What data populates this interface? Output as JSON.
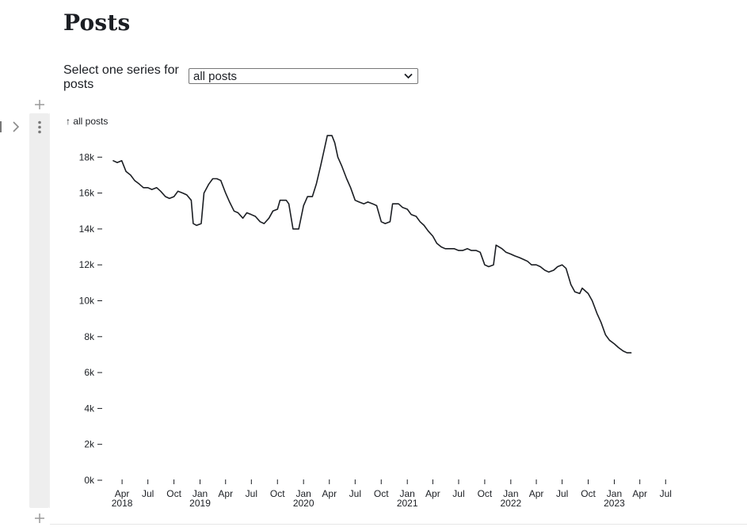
{
  "page": {
    "title": "Posts"
  },
  "selector": {
    "label": "Select one series for posts",
    "value": "all posts"
  },
  "chart_data": {
    "type": "line",
    "title": "",
    "ylabel": "↑ all posts",
    "xlabel": "",
    "ylim": [
      0,
      20000
    ],
    "xlim": [
      "2018-02-15",
      "2023-07-31"
    ],
    "y_ticks": [
      {
        "value": 0,
        "label": "0k"
      },
      {
        "value": 2000,
        "label": "2k"
      },
      {
        "value": 4000,
        "label": "4k"
      },
      {
        "value": 6000,
        "label": "6k"
      },
      {
        "value": 8000,
        "label": "8k"
      },
      {
        "value": 10000,
        "label": "10k"
      },
      {
        "value": 12000,
        "label": "12k"
      },
      {
        "value": 14000,
        "label": "14k"
      },
      {
        "value": 16000,
        "label": "16k"
      },
      {
        "value": 18000,
        "label": "18k"
      }
    ],
    "x_ticks": [
      {
        "date": "2018-04-01",
        "label": "Apr",
        "year": "2018"
      },
      {
        "date": "2018-07-01",
        "label": "Jul",
        "year": ""
      },
      {
        "date": "2018-10-01",
        "label": "Oct",
        "year": ""
      },
      {
        "date": "2019-01-01",
        "label": "Jan",
        "year": "2019"
      },
      {
        "date": "2019-04-01",
        "label": "Apr",
        "year": ""
      },
      {
        "date": "2019-07-01",
        "label": "Jul",
        "year": ""
      },
      {
        "date": "2019-10-01",
        "label": "Oct",
        "year": ""
      },
      {
        "date": "2020-01-01",
        "label": "Jan",
        "year": "2020"
      },
      {
        "date": "2020-04-01",
        "label": "Apr",
        "year": ""
      },
      {
        "date": "2020-07-01",
        "label": "Jul",
        "year": ""
      },
      {
        "date": "2020-10-01",
        "label": "Oct",
        "year": ""
      },
      {
        "date": "2021-01-01",
        "label": "Jan",
        "year": "2021"
      },
      {
        "date": "2021-04-01",
        "label": "Apr",
        "year": ""
      },
      {
        "date": "2021-07-01",
        "label": "Jul",
        "year": ""
      },
      {
        "date": "2021-10-01",
        "label": "Oct",
        "year": ""
      },
      {
        "date": "2022-01-01",
        "label": "Jan",
        "year": "2022"
      },
      {
        "date": "2022-04-01",
        "label": "Apr",
        "year": ""
      },
      {
        "date": "2022-07-01",
        "label": "Jul",
        "year": ""
      },
      {
        "date": "2022-10-01",
        "label": "Oct",
        "year": ""
      },
      {
        "date": "2023-01-01",
        "label": "Jan",
        "year": "2023"
      },
      {
        "date": "2023-04-01",
        "label": "Apr",
        "year": ""
      },
      {
        "date": "2023-07-01",
        "label": "Jul",
        "year": ""
      }
    ],
    "series": [
      {
        "name": "all posts",
        "color": "#1b1e23",
        "points": [
          [
            "2018-03-01",
            17800
          ],
          [
            "2018-03-15",
            17700
          ],
          [
            "2018-03-31",
            17800
          ],
          [
            "2018-04-15",
            17200
          ],
          [
            "2018-05-01",
            17000
          ],
          [
            "2018-05-15",
            16700
          ],
          [
            "2018-06-01",
            16500
          ],
          [
            "2018-06-15",
            16300
          ],
          [
            "2018-07-01",
            16300
          ],
          [
            "2018-07-15",
            16200
          ],
          [
            "2018-08-01",
            16300
          ],
          [
            "2018-08-15",
            16100
          ],
          [
            "2018-09-01",
            15800
          ],
          [
            "2018-09-15",
            15700
          ],
          [
            "2018-10-01",
            15800
          ],
          [
            "2018-10-15",
            16100
          ],
          [
            "2018-11-01",
            16000
          ],
          [
            "2018-11-15",
            15900
          ],
          [
            "2018-12-01",
            15600
          ],
          [
            "2018-12-08",
            14300
          ],
          [
            "2018-12-20",
            14200
          ],
          [
            "2019-01-05",
            14300
          ],
          [
            "2019-01-15",
            16000
          ],
          [
            "2019-02-01",
            16500
          ],
          [
            "2019-02-15",
            16800
          ],
          [
            "2019-03-01",
            16800
          ],
          [
            "2019-03-15",
            16700
          ],
          [
            "2019-04-01",
            16000
          ],
          [
            "2019-04-15",
            15500
          ],
          [
            "2019-05-01",
            15000
          ],
          [
            "2019-05-15",
            14900
          ],
          [
            "2019-06-01",
            14600
          ],
          [
            "2019-06-15",
            14900
          ],
          [
            "2019-07-01",
            14800
          ],
          [
            "2019-07-15",
            14700
          ],
          [
            "2019-08-01",
            14400
          ],
          [
            "2019-08-15",
            14300
          ],
          [
            "2019-09-01",
            14600
          ],
          [
            "2019-09-15",
            15000
          ],
          [
            "2019-10-01",
            15100
          ],
          [
            "2019-10-10",
            15600
          ],
          [
            "2019-11-01",
            15600
          ],
          [
            "2019-11-10",
            15400
          ],
          [
            "2019-11-25",
            14000
          ],
          [
            "2019-12-15",
            14000
          ],
          [
            "2020-01-01",
            15300
          ],
          [
            "2020-01-15",
            15800
          ],
          [
            "2020-02-01",
            15800
          ],
          [
            "2020-02-15",
            16500
          ],
          [
            "2020-03-01",
            17500
          ],
          [
            "2020-03-15",
            18500
          ],
          [
            "2020-03-25",
            19200
          ],
          [
            "2020-04-10",
            19200
          ],
          [
            "2020-04-20",
            18800
          ],
          [
            "2020-05-01",
            18000
          ],
          [
            "2020-05-15",
            17500
          ],
          [
            "2020-06-01",
            16800
          ],
          [
            "2020-06-15",
            16300
          ],
          [
            "2020-07-01",
            15600
          ],
          [
            "2020-07-15",
            15500
          ],
          [
            "2020-08-01",
            15400
          ],
          [
            "2020-08-15",
            15500
          ],
          [
            "2020-09-01",
            15400
          ],
          [
            "2020-09-15",
            15300
          ],
          [
            "2020-10-01",
            14400
          ],
          [
            "2020-10-15",
            14300
          ],
          [
            "2020-11-01",
            14400
          ],
          [
            "2020-11-10",
            15400
          ],
          [
            "2020-12-01",
            15400
          ],
          [
            "2020-12-15",
            15200
          ],
          [
            "2021-01-01",
            15100
          ],
          [
            "2021-01-15",
            14800
          ],
          [
            "2021-02-01",
            14700
          ],
          [
            "2021-02-15",
            14400
          ],
          [
            "2021-03-01",
            14200
          ],
          [
            "2021-03-15",
            13900
          ],
          [
            "2021-04-01",
            13600
          ],
          [
            "2021-04-15",
            13200
          ],
          [
            "2021-05-01",
            13000
          ],
          [
            "2021-05-15",
            12900
          ],
          [
            "2021-06-01",
            12900
          ],
          [
            "2021-06-15",
            12900
          ],
          [
            "2021-07-01",
            12800
          ],
          [
            "2021-07-15",
            12800
          ],
          [
            "2021-08-01",
            12900
          ],
          [
            "2021-08-15",
            12800
          ],
          [
            "2021-09-01",
            12800
          ],
          [
            "2021-09-15",
            12700
          ],
          [
            "2021-10-01",
            12000
          ],
          [
            "2021-10-15",
            11900
          ],
          [
            "2021-11-01",
            12000
          ],
          [
            "2021-11-10",
            13100
          ],
          [
            "2021-12-01",
            12900
          ],
          [
            "2021-12-15",
            12700
          ],
          [
            "2022-01-01",
            12600
          ],
          [
            "2022-01-15",
            12500
          ],
          [
            "2022-02-01",
            12400
          ],
          [
            "2022-02-15",
            12300
          ],
          [
            "2022-03-01",
            12200
          ],
          [
            "2022-03-15",
            12000
          ],
          [
            "2022-04-01",
            12000
          ],
          [
            "2022-04-15",
            11900
          ],
          [
            "2022-05-01",
            11700
          ],
          [
            "2022-05-15",
            11600
          ],
          [
            "2022-06-01",
            11700
          ],
          [
            "2022-06-15",
            11900
          ],
          [
            "2022-07-01",
            12000
          ],
          [
            "2022-07-15",
            11800
          ],
          [
            "2022-08-01",
            10900
          ],
          [
            "2022-08-15",
            10500
          ],
          [
            "2022-09-01",
            10400
          ],
          [
            "2022-09-10",
            10700
          ],
          [
            "2022-10-01",
            10400
          ],
          [
            "2022-10-15",
            10000
          ],
          [
            "2022-11-01",
            9300
          ],
          [
            "2022-11-15",
            8800
          ],
          [
            "2022-12-01",
            8100
          ],
          [
            "2022-12-15",
            7800
          ],
          [
            "2023-01-01",
            7600
          ],
          [
            "2023-01-15",
            7400
          ],
          [
            "2023-02-01",
            7200
          ],
          [
            "2023-02-15",
            7100
          ],
          [
            "2023-03-01",
            7100
          ]
        ]
      }
    ]
  }
}
